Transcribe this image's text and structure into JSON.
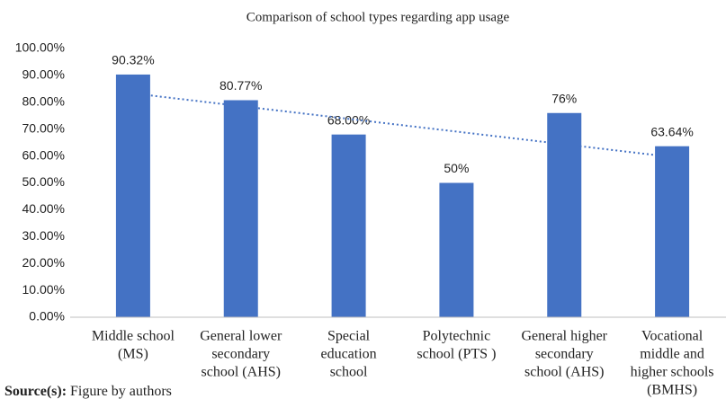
{
  "chart_data": {
    "type": "bar",
    "title": "Comparison of school types regarding app usage",
    "categories": [
      [
        "Middle school",
        "(MS)"
      ],
      [
        "General lower",
        "secondary",
        "school (AHS)"
      ],
      [
        "Special",
        "education",
        "school"
      ],
      [
        "Polytechnic",
        "school (PTS )"
      ],
      [
        "General higher",
        "secondary",
        "school (AHS)"
      ],
      [
        "Vocational",
        "middle and",
        "higher schools",
        "(BMHS)"
      ]
    ],
    "values": [
      90.32,
      80.77,
      68.0,
      50,
      76,
      63.64
    ],
    "value_labels": [
      "90.32%",
      "80.77%",
      "68.00%",
      "50%",
      "76%",
      "63.64%"
    ],
    "color": "#4472c4",
    "trendline": "linear",
    "trendline_color": "#4472c4",
    "ylim": [
      0,
      100
    ],
    "yticks": [
      {
        "value": 0,
        "label": "0.00%"
      },
      {
        "value": 10,
        "label": "10.00%"
      },
      {
        "value": 20,
        "label": "20.00%"
      },
      {
        "value": 30,
        "label": "30.00%"
      },
      {
        "value": 40,
        "label": "40.00%"
      },
      {
        "value": 50,
        "label": "50.00%"
      },
      {
        "value": 60,
        "label": "60.00%"
      },
      {
        "value": 70,
        "label": "70.00%"
      },
      {
        "value": 80,
        "label": "80.00%"
      },
      {
        "value": 90,
        "label": "90.00%"
      },
      {
        "value": 100,
        "label": "100.00%"
      }
    ],
    "grid": false
  },
  "source_label": "Source(s):",
  "source_text": "Figure by authors"
}
